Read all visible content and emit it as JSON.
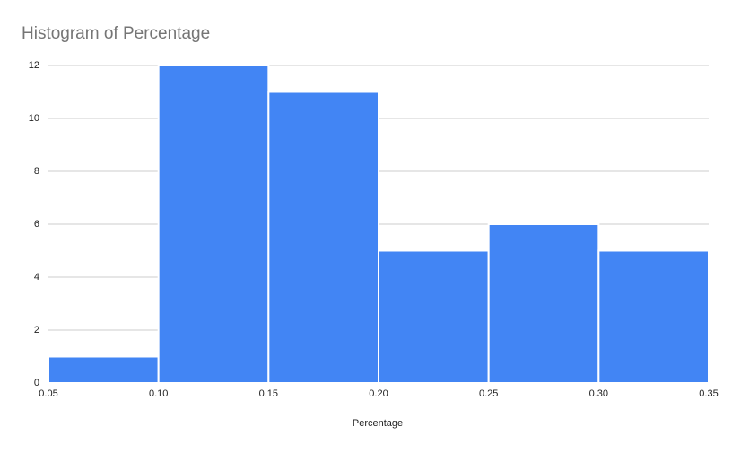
{
  "chart_data": {
    "type": "histogram",
    "title": "Histogram of Percentage",
    "x_label": "Percentage",
    "bins": [
      0.05,
      0.1,
      0.15,
      0.2,
      0.25,
      0.3,
      0.35
    ],
    "values": [
      1,
      12,
      11,
      5,
      6,
      5
    ],
    "color": "#4285f4",
    "xlim": [
      0.05,
      0.35
    ],
    "xticks": [
      0.05,
      {
        "value": 0.1,
        "label": "0.10"
      },
      0.15,
      {
        "value": 0.2,
        "label": "0.20"
      },
      0.25,
      {
        "value": 0.3,
        "label": "0.30"
      },
      0.35
    ],
    "ylim": [
      0,
      12
    ],
    "yticks": [
      0,
      2,
      4,
      6,
      8,
      10,
      12
    ],
    "grid": true
  }
}
